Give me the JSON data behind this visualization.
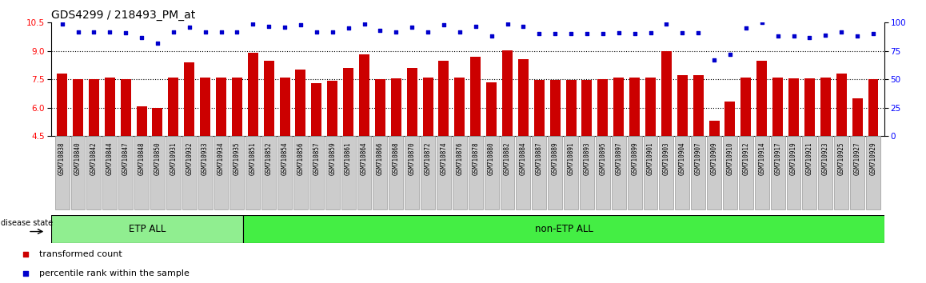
{
  "title": "GDS4299 / 218493_PM_at",
  "categories": [
    "GSM710838",
    "GSM710840",
    "GSM710842",
    "GSM710844",
    "GSM710847",
    "GSM710848",
    "GSM710850",
    "GSM710931",
    "GSM710932",
    "GSM710933",
    "GSM710934",
    "GSM710935",
    "GSM710851",
    "GSM710852",
    "GSM710854",
    "GSM710856",
    "GSM710857",
    "GSM710859",
    "GSM710861",
    "GSM710864",
    "GSM710866",
    "GSM710868",
    "GSM710870",
    "GSM710872",
    "GSM710874",
    "GSM710876",
    "GSM710878",
    "GSM710880",
    "GSM710882",
    "GSM710884",
    "GSM710887",
    "GSM710889",
    "GSM710891",
    "GSM710893",
    "GSM710895",
    "GSM710897",
    "GSM710899",
    "GSM710901",
    "GSM710903",
    "GSM710904",
    "GSM710907",
    "GSM710909",
    "GSM710910",
    "GSM710912",
    "GSM710914",
    "GSM710917",
    "GSM710919",
    "GSM710921",
    "GSM710923",
    "GSM710925",
    "GSM710927",
    "GSM710929"
  ],
  "bar_values": [
    7.8,
    7.5,
    7.5,
    7.6,
    7.5,
    6.05,
    6.0,
    7.6,
    8.4,
    7.6,
    7.6,
    7.6,
    8.9,
    8.5,
    7.6,
    8.0,
    7.3,
    7.4,
    8.1,
    8.8,
    7.5,
    7.55,
    8.1,
    7.6,
    8.5,
    7.6,
    8.7,
    7.35,
    9.05,
    8.55,
    7.45,
    7.45,
    7.45,
    7.45,
    7.5,
    7.6,
    7.6,
    7.6,
    9.0,
    7.7,
    7.7,
    5.3,
    6.3,
    7.6,
    8.5,
    7.6,
    7.55,
    7.55,
    7.6,
    7.8,
    6.5,
    7.5
  ],
  "dot_values": [
    99,
    92,
    92,
    92,
    91,
    87,
    82,
    92,
    96,
    92,
    92,
    92,
    99,
    97,
    96,
    98,
    92,
    92,
    95,
    99,
    93,
    92,
    96,
    92,
    98,
    92,
    97,
    88,
    99,
    97,
    90,
    90,
    90,
    90,
    90,
    91,
    90,
    91,
    99,
    91,
    91,
    67,
    72,
    95,
    100,
    88,
    88,
    87,
    89,
    92,
    88,
    90
  ],
  "etp_count": 12,
  "ylim_left": [
    4.5,
    10.5
  ],
  "ylim_right": [
    0,
    100
  ],
  "yticks_left": [
    4.5,
    6.0,
    7.5,
    9.0,
    10.5
  ],
  "yticks_right": [
    0,
    25,
    50,
    75,
    100
  ],
  "grid_lines": [
    6.0,
    7.5,
    9.0
  ],
  "bar_color": "#cc0000",
  "dot_color": "#0000cc",
  "etp_color": "#90ee90",
  "non_etp_color": "#44ee44",
  "legend_items": [
    "transformed count",
    "percentile rank within the sample"
  ],
  "disease_state_label": "disease state",
  "etp_label": "ETP ALL",
  "non_etp_label": "non-ETP ALL",
  "tick_bg_color": "#cccccc",
  "tick_edge_color": "#999999"
}
